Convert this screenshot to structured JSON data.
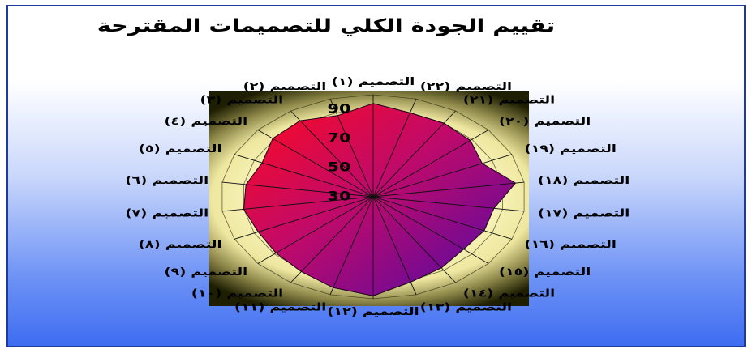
{
  "chart_data": {
    "type": "radar",
    "title": "تقييم الجودة الكلي للتصميمات المقترحة",
    "categories": [
      "التصميم (١)",
      "التصميم (٢)",
      "التصميم (٣)",
      "التصميم (٤)",
      "التصميم (٥)",
      "التصميم (٦)",
      "التصميم (٧)",
      "التصميم (٨)",
      "التصميم (٩)",
      "التصميم (١٠)",
      "التصميم (١١)",
      "التصميم (١٢)",
      "التصميم (١٣)",
      "التصميم (١٤)",
      "التصميم (١٥)",
      "التصميم (١٦)",
      "التصميم (١٧)",
      "التصميم (١٨)",
      "التصميم (١٩)",
      "التصميم (٢٠)",
      "التصميم (٢١)",
      "التصميم (٢٢)"
    ],
    "series": [
      {
        "values": [
          94,
          88,
          92,
          91,
          86,
          89,
          90,
          88,
          89,
          91,
          95,
          98,
          91,
          88,
          85,
          86,
          86,
          96,
          85,
          89,
          90,
          90
        ]
      }
    ],
    "rlim": [
      30,
      100
    ],
    "rticks": [
      30,
      50,
      70,
      90
    ],
    "grid": true,
    "legend": false,
    "fill_colors": [
      "#ff0a1e",
      "#c00a6a",
      "#4a0aa8"
    ]
  }
}
